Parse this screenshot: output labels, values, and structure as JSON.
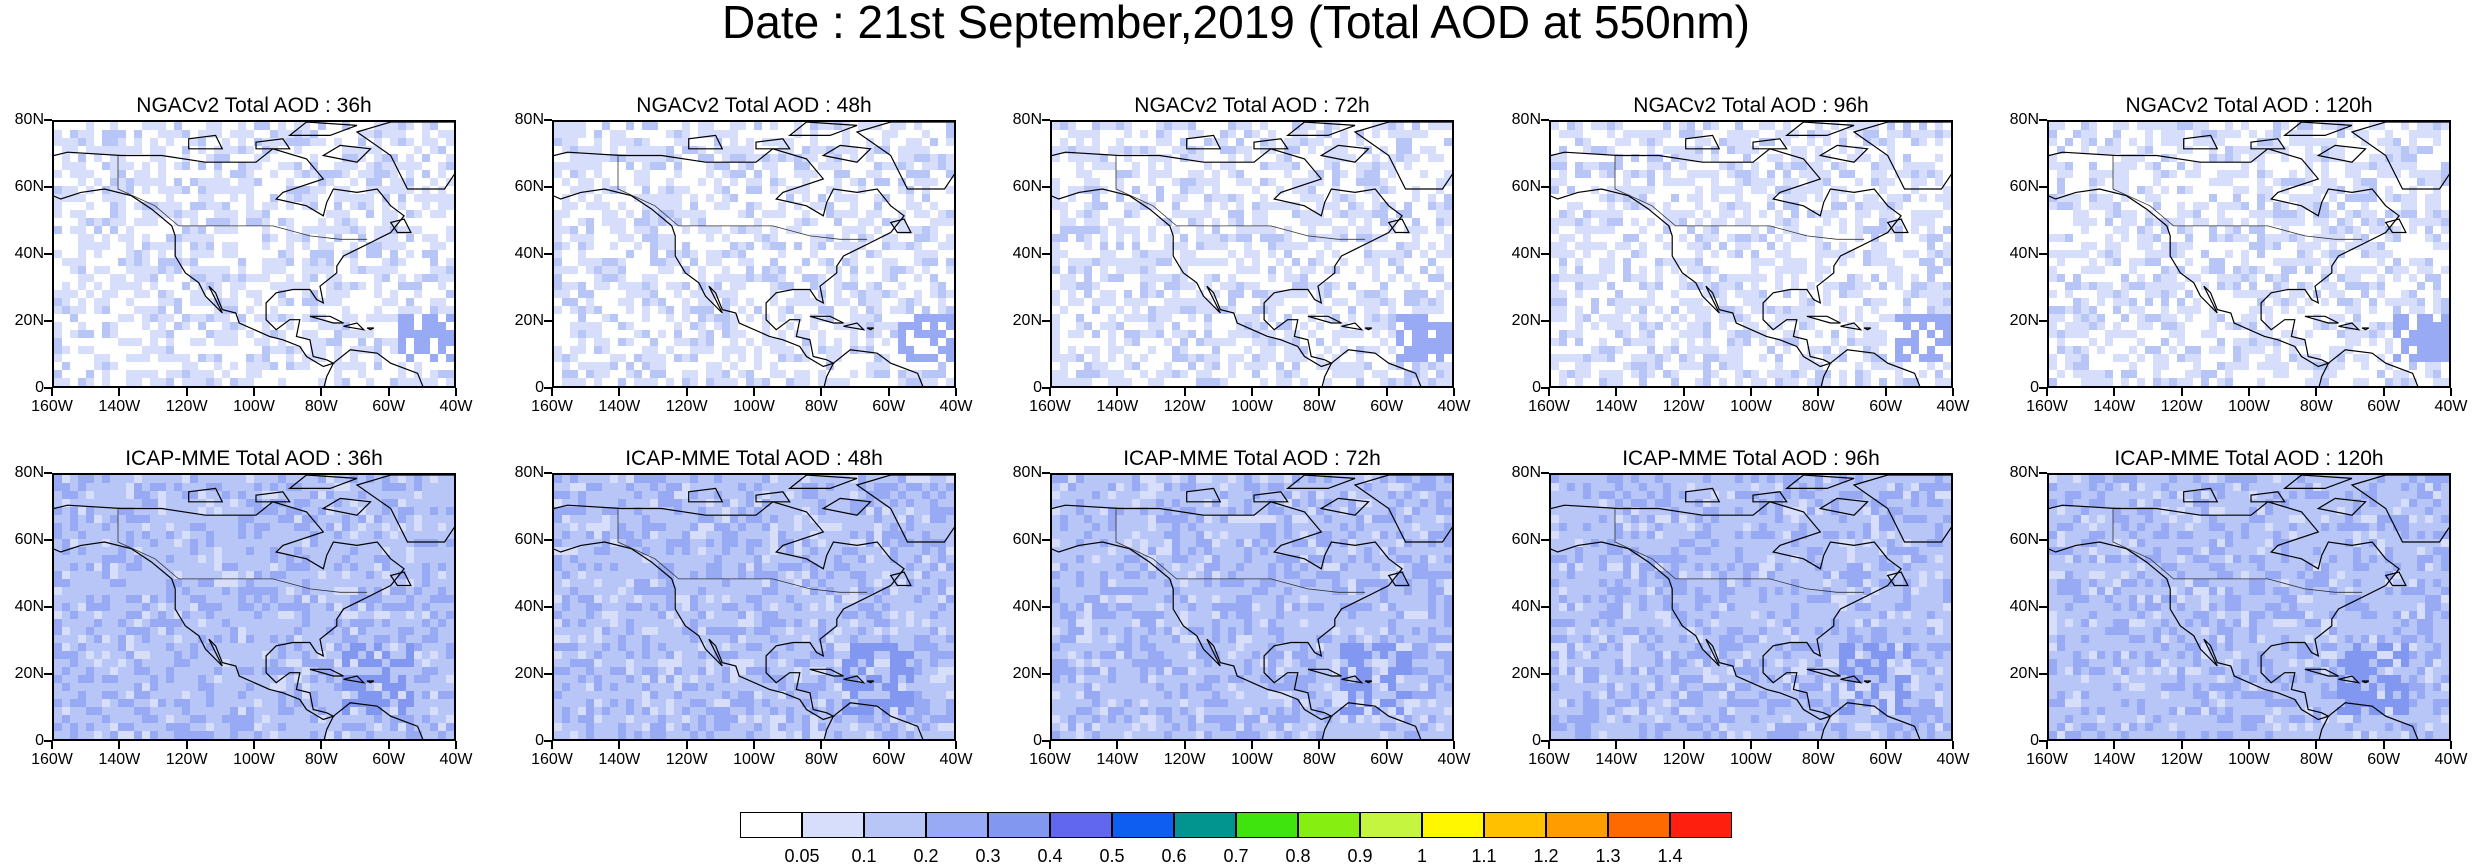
{
  "title": "Date : 21st September,2019 (Total AOD at 550nm)",
  "panels": [
    {
      "title": "NGACv2 Total AOD : 36h"
    },
    {
      "title": "NGACv2 Total AOD : 48h"
    },
    {
      "title": "NGACv2 Total AOD : 72h"
    },
    {
      "title": "NGACv2 Total AOD : 96h"
    },
    {
      "title": "NGACv2 Total AOD : 120h"
    },
    {
      "title": "ICAP-MME Total AOD : 36h"
    },
    {
      "title": "ICAP-MME Total AOD : 48h"
    },
    {
      "title": "ICAP-MME Total AOD : 72h"
    },
    {
      "title": "ICAP-MME Total AOD : 96h"
    },
    {
      "title": "ICAP-MME Total AOD : 120h"
    }
  ],
  "axes": {
    "lat_labels": [
      "80N",
      "60N",
      "40N",
      "20N",
      "0"
    ],
    "lon_labels": [
      "160W",
      "140W",
      "120W",
      "100W",
      "80W",
      "60W",
      "40W"
    ]
  },
  "colorbar": {
    "labels": [
      "0.05",
      "0.1",
      "0.2",
      "0.3",
      "0.4",
      "0.5",
      "0.6",
      "0.7",
      "0.8",
      "0.9",
      "1",
      "1.1",
      "1.2",
      "1.3",
      "1.4"
    ],
    "colors": [
      "#ffffff",
      "#d7defb",
      "#b7c5f7",
      "#97aaf3",
      "#8197f0",
      "#6168ef",
      "#0f5ef2",
      "#029590",
      "#3fe30e",
      "#86ee10",
      "#c6f540",
      "#fff700",
      "#ffc000",
      "#ff9c00",
      "#ff6a00",
      "#ff1f0e"
    ]
  }
}
